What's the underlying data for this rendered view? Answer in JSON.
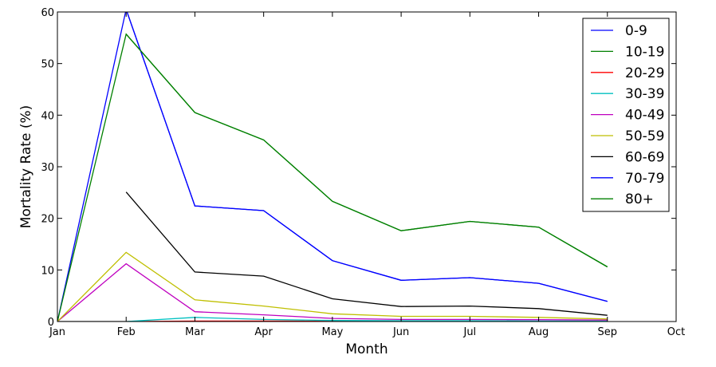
{
  "chart_data": {
    "type": "line",
    "xlabel": "Month",
    "ylabel": "Mortality Rate (%)",
    "x_ticks": [
      "Jan",
      "Feb",
      "Mar",
      "Apr",
      "May",
      "Jun",
      "Jul",
      "Aug",
      "Sep",
      "Oct"
    ],
    "y_ticks": [
      0,
      10,
      20,
      30,
      40,
      50,
      60
    ],
    "xlim": [
      0,
      9
    ],
    "ylim": [
      0,
      60
    ],
    "grid": false,
    "legend_position": "top-right",
    "series": [
      {
        "name": "0-9",
        "color": "#0000ff",
        "values": [
          0,
          60.5,
          22.4,
          21.5,
          11.8,
          8.0,
          8.5,
          7.4,
          3.9
        ]
      },
      {
        "name": "10-19",
        "color": "#008000",
        "values": [
          0,
          55.7,
          40.5,
          35.2,
          23.3,
          17.6,
          19.4,
          18.3,
          10.6
        ]
      },
      {
        "name": "20-29",
        "color": "#ff0000",
        "values": [
          0,
          0,
          0.1,
          0.1,
          0.05,
          0.05,
          0.05,
          0.05,
          0.05
        ]
      },
      {
        "name": "30-39",
        "color": "#00bfbf",
        "values": [
          0,
          0,
          0.8,
          0.4,
          0.2,
          0.15,
          0.15,
          0.1,
          0.1
        ]
      },
      {
        "name": "40-49",
        "color": "#bf00bf",
        "values": [
          0,
          11.2,
          1.9,
          1.3,
          0.6,
          0.4,
          0.4,
          0.35,
          0.3
        ]
      },
      {
        "name": "50-59",
        "color": "#bfbf00",
        "values": [
          0,
          13.4,
          4.2,
          3.0,
          1.5,
          1.0,
          1.0,
          0.8,
          0.5
        ]
      },
      {
        "name": "60-69",
        "color": "#000000",
        "values": [
          null,
          25.1,
          9.6,
          8.8,
          4.4,
          2.9,
          3.0,
          2.5,
          1.2
        ]
      },
      {
        "name": "70-79",
        "color": "#0000ff",
        "values": [
          null,
          60.5,
          22.4,
          21.5,
          11.8,
          8.0,
          8.5,
          7.4,
          3.9
        ]
      },
      {
        "name": "80+",
        "color": "#008000",
        "values": [
          null,
          55.7,
          40.5,
          35.2,
          23.3,
          17.6,
          19.4,
          18.3,
          10.6
        ]
      }
    ]
  }
}
